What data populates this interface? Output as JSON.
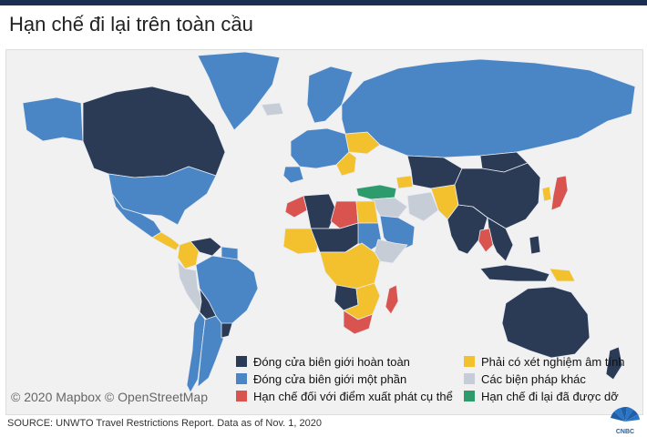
{
  "title": "Hạn chế đi lại trên toàn cầu",
  "attribution": "© 2020 Mapbox © OpenStreetMap",
  "source": "SOURCE: UNWTO Travel Restrictions Report. Data as of Nov. 1, 2020",
  "logo_text": "CNBC",
  "colors": {
    "complete_closure": "#2b3b56",
    "partial_closure": "#4a86c5",
    "origin_specific": "#d9534f",
    "negative_test": "#f3c12e",
    "other_measures": "#c7cdd6",
    "lifted": "#2e9b6d",
    "water": "#f1f1f1",
    "border": "#e8ecf2"
  },
  "legend": [
    {
      "key": "complete_closure",
      "label": "Đóng cửa biên giới hoàn toàn"
    },
    {
      "key": "partial_closure",
      "label": "Đóng cửa biên giới một phần"
    },
    {
      "key": "origin_specific",
      "label": "Hạn chế đối với điểm xuất phát cụ thể"
    },
    {
      "key": "negative_test",
      "label": "Phải có xét nghiệm âm tính"
    },
    {
      "key": "other_measures",
      "label": "Các biện pháp khác"
    },
    {
      "key": "lifted",
      "label": "Hạn chế đi lại đã được dỡ"
    }
  ],
  "regions": [
    {
      "name": "canada",
      "status": "complete_closure"
    },
    {
      "name": "alaska",
      "status": "partial_closure"
    },
    {
      "name": "greenland",
      "status": "partial_closure"
    },
    {
      "name": "usa",
      "status": "partial_closure"
    },
    {
      "name": "mexico",
      "status": "partial_closure"
    },
    {
      "name": "central-america",
      "status": "negative_test"
    },
    {
      "name": "colombia",
      "status": "negative_test"
    },
    {
      "name": "venezuela",
      "status": "complete_closure"
    },
    {
      "name": "guianas",
      "status": "partial_closure"
    },
    {
      "name": "brazil",
      "status": "partial_closure"
    },
    {
      "name": "peru",
      "status": "other_measures"
    },
    {
      "name": "bolivia",
      "status": "complete_closure"
    },
    {
      "name": "argentina",
      "status": "partial_closure"
    },
    {
      "name": "chile",
      "status": "partial_closure"
    },
    {
      "name": "uruguay",
      "status": "complete_closure"
    },
    {
      "name": "iceland",
      "status": "other_measures"
    },
    {
      "name": "scandinavia",
      "status": "partial_closure"
    },
    {
      "name": "western-europe",
      "status": "partial_closure"
    },
    {
      "name": "iberia",
      "status": "partial_closure"
    },
    {
      "name": "russia",
      "status": "partial_closure"
    },
    {
      "name": "ukraine",
      "status": "negative_test"
    },
    {
      "name": "balkans",
      "status": "negative_test"
    },
    {
      "name": "turkey",
      "status": "lifted"
    },
    {
      "name": "caucasus",
      "status": "negative_test"
    },
    {
      "name": "central-asia",
      "status": "complete_closure"
    },
    {
      "name": "middle-east",
      "status": "other_measures"
    },
    {
      "name": "iran",
      "status": "other_measures"
    },
    {
      "name": "saudi-arabia",
      "status": "partial_closure"
    },
    {
      "name": "afghanistan-pakistan",
      "status": "negative_test"
    },
    {
      "name": "india",
      "status": "complete_closure"
    },
    {
      "name": "china",
      "status": "complete_closure"
    },
    {
      "name": "mongolia",
      "status": "complete_closure"
    },
    {
      "name": "korea",
      "status": "negative_test"
    },
    {
      "name": "japan",
      "status": "origin_specific"
    },
    {
      "name": "southeast-asia",
      "status": "complete_closure"
    },
    {
      "name": "thailand-cambodia",
      "status": "origin_specific"
    },
    {
      "name": "indonesia",
      "status": "complete_closure"
    },
    {
      "name": "philippines",
      "status": "complete_closure"
    },
    {
      "name": "png",
      "status": "negative_test"
    },
    {
      "name": "australia",
      "status": "complete_closure"
    },
    {
      "name": "new-zealand",
      "status": "complete_closure"
    },
    {
      "name": "morocco",
      "status": "origin_specific"
    },
    {
      "name": "algeria",
      "status": "complete_closure"
    },
    {
      "name": "libya",
      "status": "origin_specific"
    },
    {
      "name": "egypt",
      "status": "negative_test"
    },
    {
      "name": "west-africa",
      "status": "negative_test"
    },
    {
      "name": "sahel",
      "status": "complete_closure"
    },
    {
      "name": "sudan",
      "status": "partial_closure"
    },
    {
      "name": "horn-of-africa",
      "status": "other_measures"
    },
    {
      "name": "central-africa",
      "status": "negative_test"
    },
    {
      "name": "angola",
      "status": "complete_closure"
    },
    {
      "name": "southern-africa",
      "status": "negative_test"
    },
    {
      "name": "south-africa",
      "status": "origin_specific"
    },
    {
      "name": "madagascar",
      "status": "origin_specific"
    }
  ]
}
